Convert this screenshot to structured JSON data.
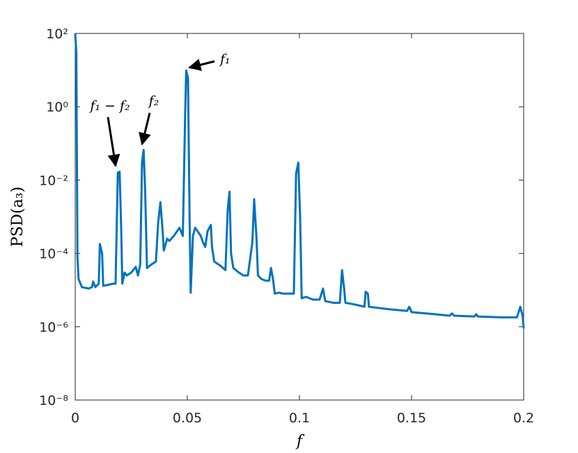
{
  "chart_data": {
    "type": "line",
    "xlabel": "f",
    "ylabel": "PSD(a₃)",
    "annotations": [
      "f₁",
      "f₂",
      "f₁ − f₂"
    ],
    "color": "#0072bd",
    "yscale": "log",
    "grid": false,
    "xlim": [
      0,
      0.2
    ],
    "xticks": [
      0,
      0.05,
      0.1,
      0.15,
      0.2
    ],
    "ylim": [
      1e-08,
      100
    ],
    "yticks": [
      {
        "value": 1e-08,
        "label": "10⁻⁸"
      },
      {
        "value": 1e-06,
        "label": "10⁻⁶"
      },
      {
        "value": 0.0001,
        "label": "10⁻⁴"
      },
      {
        "value": 0.01,
        "label": "10⁻²"
      },
      {
        "value": 1,
        "label": "10⁰"
      },
      {
        "value": 100,
        "label": "10²"
      }
    ],
    "x": [
      0,
      0.0005,
      0.001,
      0.0015,
      0.003,
      0.006,
      0.0075,
      0.008,
      0.009,
      0.0105,
      0.011,
      0.012,
      0.0125,
      0.015,
      0.017,
      0.018,
      0.019,
      0.0198,
      0.0205,
      0.021,
      0.022,
      0.023,
      0.025,
      0.027,
      0.028,
      0.029,
      0.0298,
      0.0305,
      0.0312,
      0.032,
      0.034,
      0.036,
      0.037,
      0.038,
      0.039,
      0.0395,
      0.041,
      0.042,
      0.044,
      0.0465,
      0.048,
      0.049,
      0.0495,
      0.0503,
      0.051,
      0.0515,
      0.0525,
      0.0535,
      0.056,
      0.057,
      0.058,
      0.059,
      0.0605,
      0.061,
      0.062,
      0.065,
      0.067,
      0.068,
      0.0688,
      0.0695,
      0.0705,
      0.073,
      0.075,
      0.077,
      0.079,
      0.0798,
      0.0808,
      0.0815,
      0.083,
      0.085,
      0.0865,
      0.0873,
      0.0882,
      0.089,
      0.091,
      0.0925,
      0.095,
      0.0975,
      0.0985,
      0.0995,
      0.1003,
      0.101,
      0.103,
      0.106,
      0.109,
      0.1105,
      0.1115,
      0.115,
      0.118,
      0.119,
      0.12,
      0.1205,
      0.125,
      0.129,
      0.1295,
      0.1305,
      0.131,
      0.14,
      0.148,
      0.149,
      0.15,
      0.16,
      0.167,
      0.168,
      0.169,
      0.178,
      0.1788,
      0.1795,
      0.19,
      0.197,
      0.1985,
      0.1995,
      0.2
    ],
    "values": [
      100,
      30,
      8e-05,
      2e-05,
      1.2e-05,
      1.1e-05,
      1.2e-05,
      1.7e-05,
      1.2e-05,
      1.5e-05,
      0.00018,
      0.0001,
      1.3e-05,
      1.4e-05,
      1.5e-05,
      1.5e-05,
      0.016,
      0.017,
      0.0005,
      1.5e-05,
      3e-05,
      2.5e-05,
      3e-05,
      4.3e-05,
      2.5e-05,
      5e-05,
      0.03,
      0.067,
      0.005,
      4e-05,
      5e-05,
      6e-05,
      0.0007,
      0.0025,
      0.0004,
      0.00012,
      0.00025,
      0.00022,
      0.0003,
      0.0005,
      0.0003,
      0.5,
      9.8,
      6,
      0.001,
      8.5e-06,
      0.0003,
      0.0005,
      0.0003,
      0.0002,
      0.00015,
      0.0004,
      0.0006,
      0.00015,
      6e-05,
      4.5e-05,
      3.5e-05,
      0.0015,
      0.0048,
      0.0001,
      4e-05,
      3e-05,
      2.5e-05,
      2.5e-05,
      0.0002,
      0.003,
      0.0003,
      2.5e-05,
      2e-05,
      1.8e-05,
      1.8e-05,
      4e-05,
      2e-05,
      8e-06,
      8.5e-06,
      8e-06,
      8e-06,
      8e-06,
      0.015,
      0.03,
      0.001,
      6e-06,
      6.5e-06,
      5.5e-06,
      5.5e-06,
      1.1e-05,
      5e-06,
      4.5e-06,
      4.5e-06,
      3.5e-05,
      1e-05,
      4.5e-06,
      4e-06,
      3.5e-06,
      9e-06,
      8e-06,
      3.5e-06,
      3e-06,
      2.7e-06,
      3.5e-06,
      2.5e-06,
      2.2e-06,
      2e-06,
      2.3e-06,
      2e-06,
      1.9e-06,
      2.2e-06,
      1.9e-06,
      1.8e-06,
      1.8e-06,
      3.5e-06,
      2e-06,
      9e-07
    ]
  }
}
